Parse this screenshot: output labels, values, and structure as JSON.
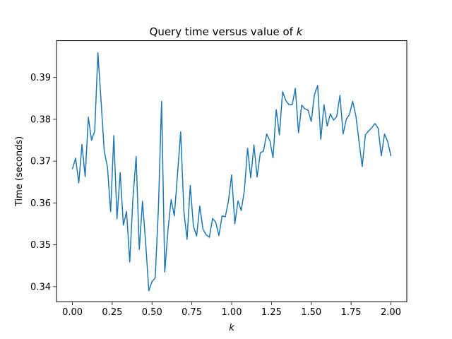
{
  "chart_data": {
    "type": "line",
    "title": "Query time versus value of ",
    "title_var": "k",
    "xlabel": "k",
    "ylabel": "Time (seconds)",
    "xlim": [
      -0.1,
      2.1
    ],
    "ylim": [
      0.3364,
      0.3988
    ],
    "xticks": [
      0.0,
      0.25,
      0.5,
      0.75,
      1.0,
      1.25,
      1.5,
      1.75,
      2.0
    ],
    "xtick_labels": [
      "0.00",
      "0.25",
      "0.50",
      "0.75",
      "1.00",
      "1.25",
      "1.50",
      "1.75",
      "2.00"
    ],
    "yticks": [
      0.34,
      0.35,
      0.36,
      0.37,
      0.38,
      0.39
    ],
    "ytick_labels": [
      "0.34",
      "0.35",
      "0.36",
      "0.37",
      "0.38",
      "0.39"
    ],
    "grid": false,
    "line_color": "#1f77b4",
    "series": [
      {
        "x": [
          0.0,
          0.02,
          0.04,
          0.06,
          0.08,
          0.1,
          0.12,
          0.14,
          0.16,
          0.18,
          0.2,
          0.22,
          0.24,
          0.26,
          0.28,
          0.3,
          0.32,
          0.34,
          0.36,
          0.38,
          0.4,
          0.42,
          0.44,
          0.46,
          0.48,
          0.5,
          0.52,
          0.54,
          0.56,
          0.58,
          0.6,
          0.62,
          0.64,
          0.66,
          0.68,
          0.7,
          0.72,
          0.74,
          0.76,
          0.78,
          0.8,
          0.82,
          0.84,
          0.86,
          0.88,
          0.9,
          0.92,
          0.94,
          0.96,
          0.98,
          1.0,
          1.02,
          1.04,
          1.06,
          1.08,
          1.1,
          1.12,
          1.14,
          1.16,
          1.18,
          1.2,
          1.22,
          1.24,
          1.26,
          1.28,
          1.3,
          1.32,
          1.34,
          1.36,
          1.38,
          1.4,
          1.42,
          1.44,
          1.46,
          1.48,
          1.5,
          1.52,
          1.54,
          1.56,
          1.58,
          1.6,
          1.62,
          1.64,
          1.66,
          1.68,
          1.7,
          1.72,
          1.74,
          1.76,
          1.78,
          1.8,
          1.82,
          1.84,
          1.86,
          1.88,
          1.9,
          1.92,
          1.94,
          1.96,
          1.98,
          2.0
        ],
        "y": [
          0.3682,
          0.3707,
          0.3648,
          0.374,
          0.3663,
          0.3805,
          0.375,
          0.3772,
          0.3959,
          0.3843,
          0.3723,
          0.3686,
          0.3579,
          0.3761,
          0.3562,
          0.3673,
          0.3547,
          0.358,
          0.3459,
          0.3611,
          0.3711,
          0.3489,
          0.3604,
          0.3504,
          0.339,
          0.3412,
          0.3421,
          0.3587,
          0.3843,
          0.3435,
          0.3535,
          0.3608,
          0.3569,
          0.3669,
          0.377,
          0.358,
          0.3513,
          0.3642,
          0.3544,
          0.3521,
          0.3593,
          0.3537,
          0.3524,
          0.3518,
          0.3563,
          0.3554,
          0.3522,
          0.3569,
          0.3567,
          0.3605,
          0.3667,
          0.355,
          0.3605,
          0.3582,
          0.363,
          0.3731,
          0.366,
          0.3739,
          0.3662,
          0.372,
          0.3724,
          0.3765,
          0.3749,
          0.3708,
          0.3823,
          0.3763,
          0.3866,
          0.3845,
          0.3835,
          0.3835,
          0.3874,
          0.3768,
          0.3834,
          0.3825,
          0.3822,
          0.3795,
          0.3859,
          0.3881,
          0.3752,
          0.3835,
          0.3784,
          0.3813,
          0.3798,
          0.3807,
          0.3857,
          0.3765,
          0.38,
          0.3812,
          0.3843,
          0.3809,
          0.3747,
          0.3687,
          0.3763,
          0.3772,
          0.378,
          0.379,
          0.3779,
          0.3713,
          0.3765,
          0.3747,
          0.3713
        ]
      }
    ]
  }
}
